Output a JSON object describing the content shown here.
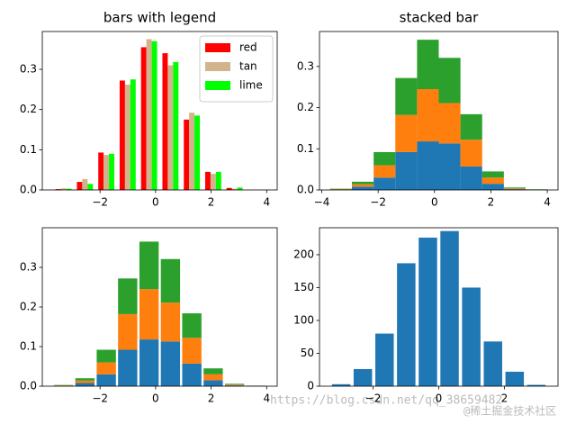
{
  "charts": [
    {
      "type": "histogram",
      "title": "bars with legend",
      "legend": "upper right",
      "bins": [
        -3.7,
        -2.93,
        -2.16,
        -1.39,
        -0.62,
        0.15,
        0.92,
        1.69,
        2.46,
        3.23,
        4.0
      ],
      "series": [
        {
          "name": "red",
          "color": "#ff0000",
          "values": [
            0.002,
            0.02,
            0.093,
            0.272,
            0.355,
            0.34,
            0.175,
            0.045,
            0.005,
            0
          ]
        },
        {
          "name": "tan",
          "color": "#d2b48c",
          "values": [
            0.004,
            0.027,
            0.087,
            0.262,
            0.375,
            0.31,
            0.192,
            0.04,
            0.003,
            0
          ]
        },
        {
          "name": "lime",
          "color": "#00ff00",
          "values": [
            0.003,
            0.015,
            0.09,
            0.275,
            0.37,
            0.318,
            0.185,
            0.045,
            0.006,
            0
          ]
        }
      ],
      "xlim": [
        -4.08,
        4.38
      ],
      "xticks": [
        {
          "value": -2,
          "label": "−2"
        },
        0,
        2,
        4
      ],
      "ylim": [
        0,
        0.394
      ],
      "yticks": [
        {
          "value": 0,
          "label": "0.0"
        },
        0.1,
        0.2,
        0.3
      ]
    },
    {
      "type": "histogram",
      "title": "stacked bar",
      "stacked": true,
      "bins": [
        -3.7,
        -2.93,
        -2.16,
        -1.39,
        -0.62,
        0.15,
        0.92,
        1.69,
        2.46,
        3.23,
        4.0
      ],
      "series": [
        {
          "color": "#1f77b4",
          "values": [
            0.001,
            0.008,
            0.03,
            0.092,
            0.118,
            0.113,
            0.057,
            0.015,
            0.002,
            0.0005
          ]
        },
        {
          "color": "#ff7f0e",
          "values": [
            0.001,
            0.006,
            0.03,
            0.09,
            0.127,
            0.098,
            0.065,
            0.015,
            0.002,
            0.0005
          ]
        },
        {
          "color": "#2ca02c",
          "values": [
            0.001,
            0.006,
            0.032,
            0.09,
            0.12,
            0.11,
            0.062,
            0.015,
            0.002,
            0.0005
          ]
        }
      ],
      "xlim": [
        -4.08,
        4.38
      ],
      "xticks": [
        {
          "value": -4,
          "label": "−4"
        },
        {
          "value": -2,
          "label": "−2"
        },
        0,
        2,
        4
      ],
      "ylim": [
        0,
        0.385
      ],
      "yticks": [
        {
          "value": 0,
          "label": "0.0"
        },
        0.1,
        0.2,
        0.3
      ]
    },
    {
      "type": "histogram",
      "stacked": true,
      "bins": [
        -3.7,
        -2.93,
        -2.16,
        -1.39,
        -0.62,
        0.15,
        0.92,
        1.69,
        2.46,
        3.23,
        4.0
      ],
      "series": [
        {
          "color": "#1f77b4",
          "values": [
            0.001,
            0.008,
            0.03,
            0.092,
            0.118,
            0.113,
            0.057,
            0.015,
            0.002,
            0.0005
          ]
        },
        {
          "color": "#ff7f0e",
          "values": [
            0.001,
            0.006,
            0.03,
            0.09,
            0.127,
            0.098,
            0.065,
            0.015,
            0.002,
            0.0005
          ]
        },
        {
          "color": "#2ca02c",
          "values": [
            0.001,
            0.006,
            0.032,
            0.09,
            0.12,
            0.11,
            0.062,
            0.015,
            0.002,
            0.0005
          ]
        }
      ],
      "xlim": [
        -4.08,
        4.38
      ],
      "xticks": [
        {
          "value": -2,
          "label": "−2"
        },
        0,
        2,
        4
      ],
      "ylim": [
        0,
        0.4
      ],
      "yticks": [
        {
          "value": 0,
          "label": "0.0"
        },
        0.1,
        0.2,
        0.3
      ]
    },
    {
      "type": "histogram",
      "bins": [
        -3.3,
        -2.64,
        -1.98,
        -1.32,
        -0.66,
        0,
        0.66,
        1.32,
        1.98,
        2.64,
        3.3
      ],
      "series": [
        {
          "color": "#1f77b4",
          "values": [
            3,
            26,
            80,
            187,
            226,
            236,
            150,
            68,
            22,
            2
          ]
        }
      ],
      "xlim": [
        -3.63,
        3.63
      ],
      "xticks": [
        {
          "value": -2,
          "label": "−2"
        },
        0,
        2
      ],
      "ylim": [
        0,
        241
      ],
      "yticks": [
        0,
        50,
        100,
        150,
        200
      ]
    }
  ],
  "watermark": [
    "https://blog.csdn.net/qq_38659482",
    "@稀土掘金技术社区"
  ]
}
